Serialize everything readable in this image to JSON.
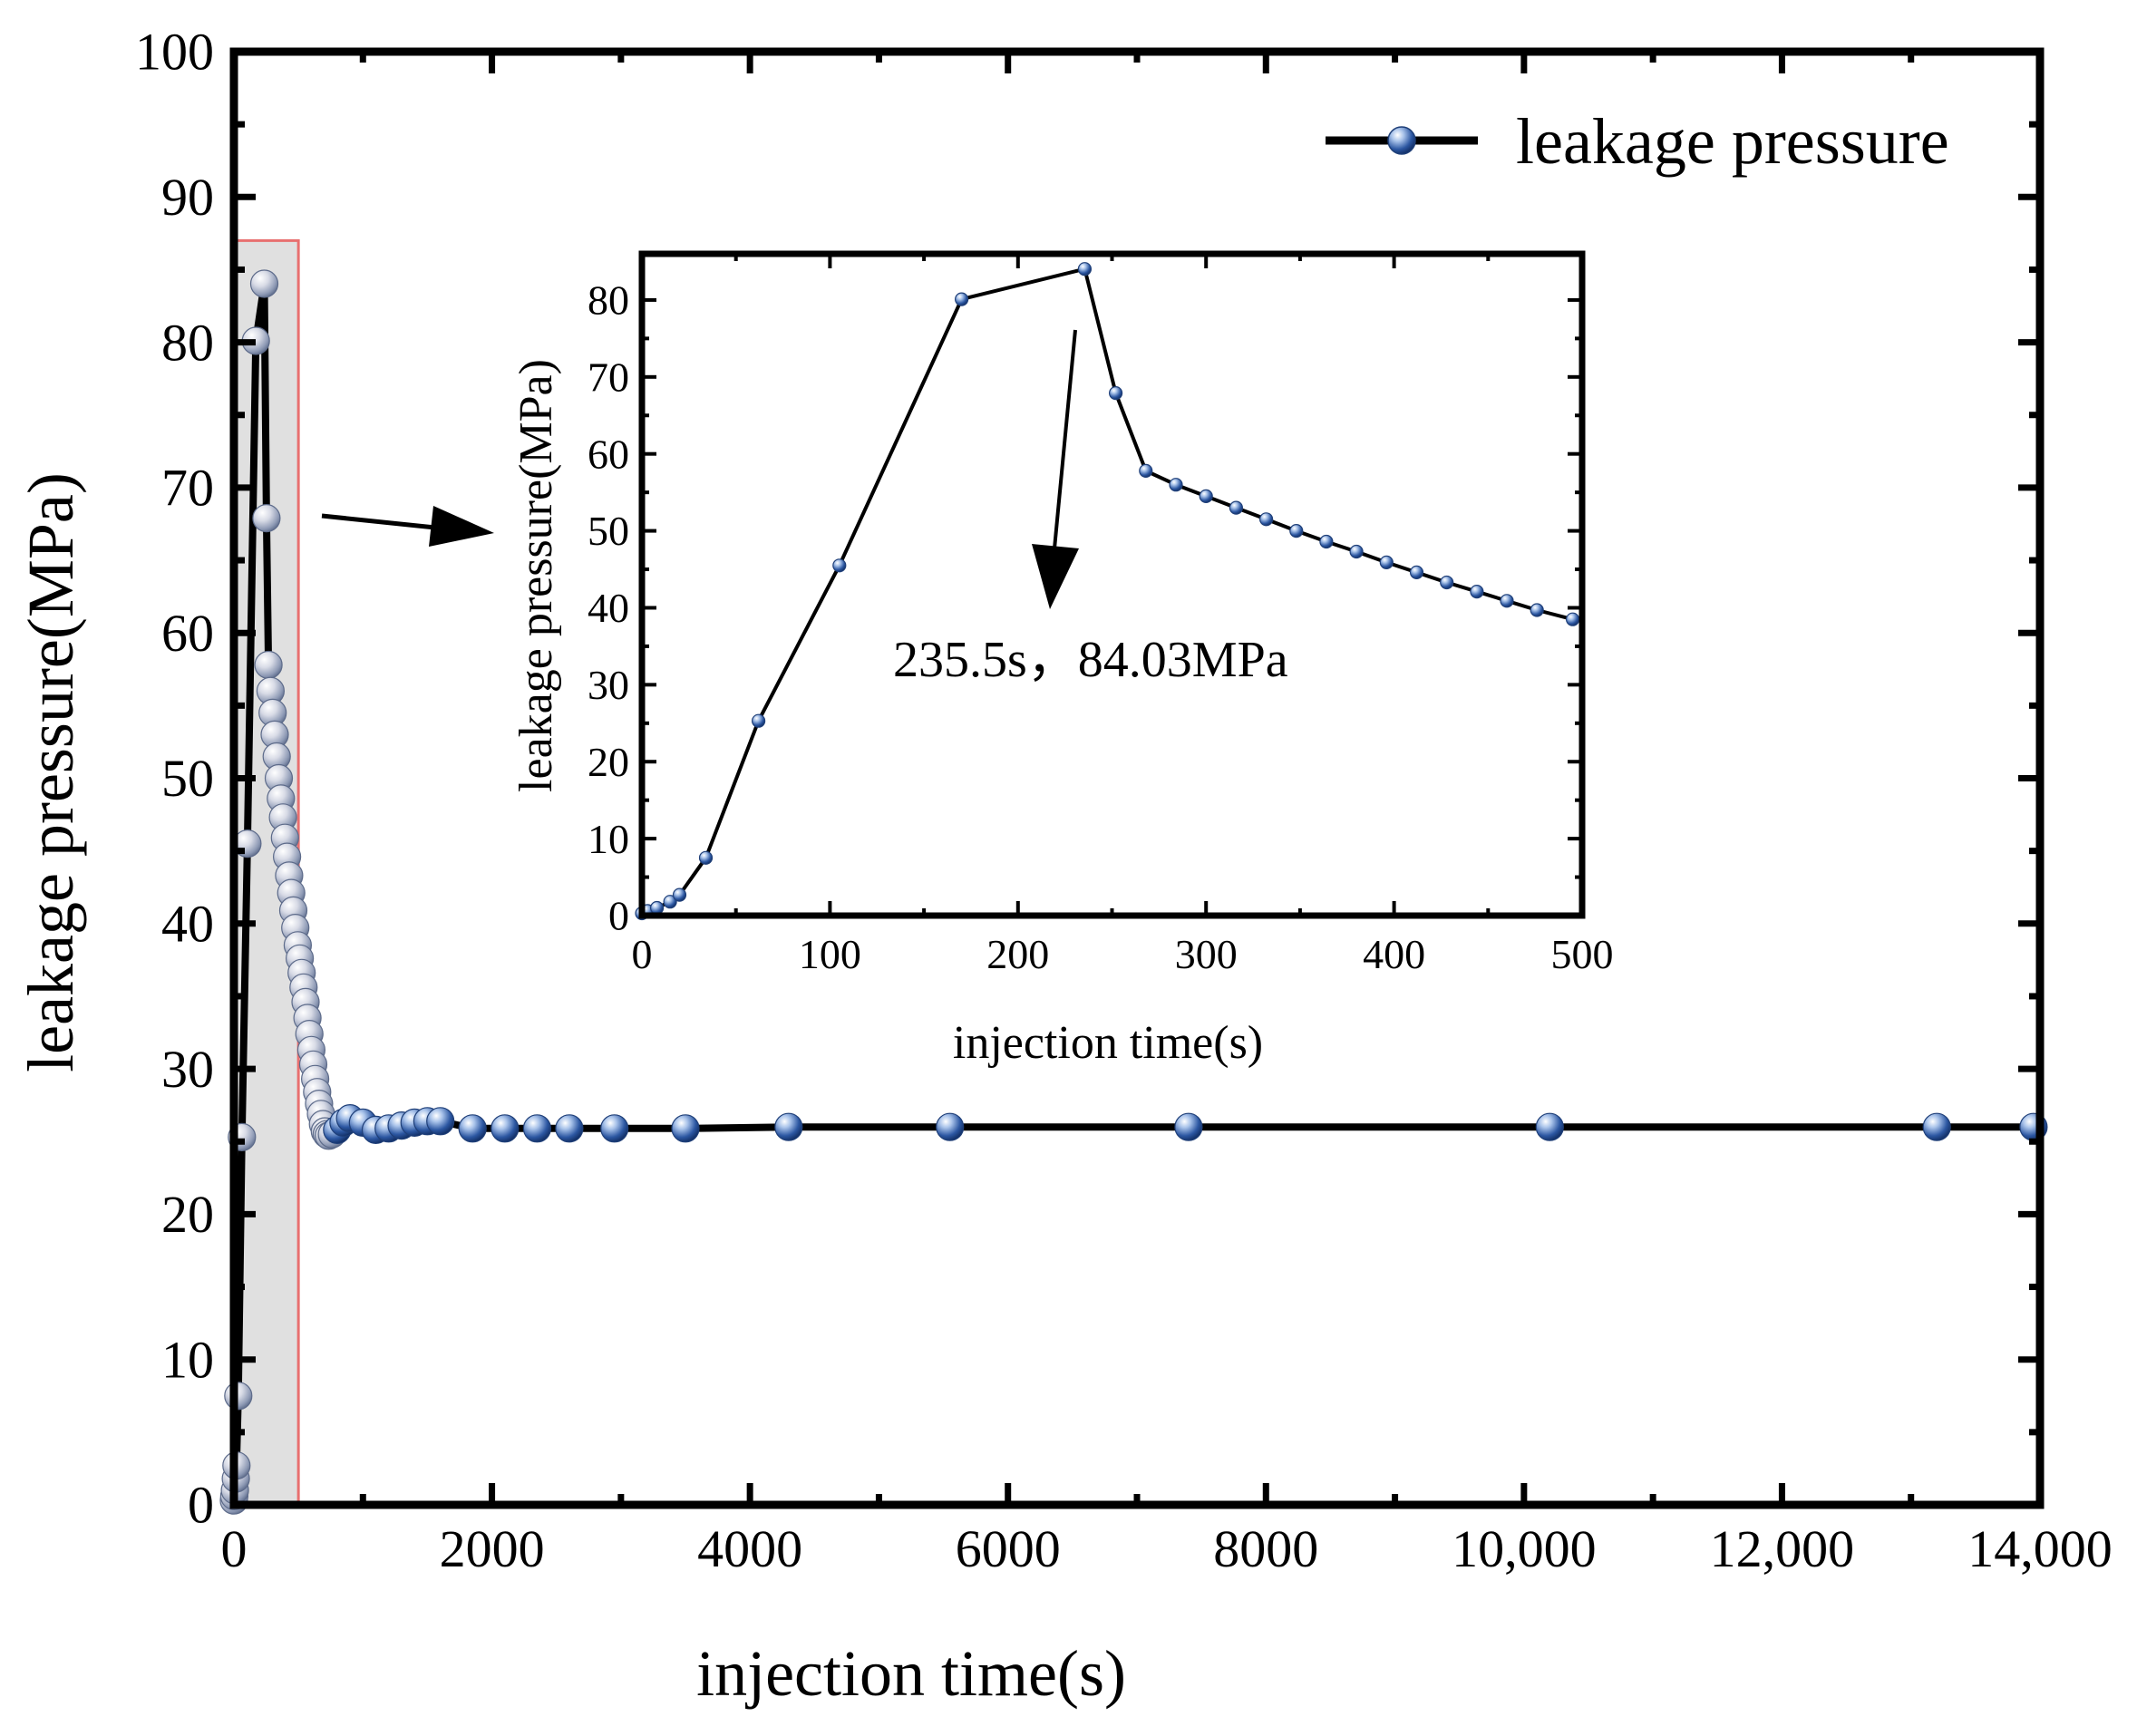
{
  "chart_data": [
    {
      "id": "main",
      "type": "line",
      "xlabel": "injection time(s)",
      "ylabel": "leakage pressure(MPa)",
      "xlim": [
        0,
        14000
      ],
      "ylim": [
        0,
        100
      ],
      "xticks": [
        0,
        2000,
        4000,
        6000,
        8000,
        10000,
        12000,
        14000
      ],
      "xtick_labels": [
        "0",
        "2000",
        "4000",
        "6000",
        "8000",
        "10,000",
        "12,000",
        "14,000"
      ],
      "yticks": [
        0,
        10,
        20,
        30,
        40,
        50,
        60,
        70,
        80,
        90,
        100
      ],
      "ytick_labels": [
        "0",
        "10",
        "20",
        "30",
        "40",
        "50",
        "60",
        "70",
        "80",
        "90",
        "100"
      ],
      "grid": false,
      "legend_position": "top-right",
      "highlight_region": {
        "x": [
          0,
          500
        ],
        "y": [
          0,
          87
        ]
      },
      "series": [
        {
          "name": "leakage pressure",
          "line_color": "#000000",
          "marker_color": "#1f4e99",
          "x": [
            0,
            3,
            8,
            15,
            20,
            34,
            62,
            105,
            170,
            235.5,
            252,
            268,
            284,
            300,
            316,
            332,
            348,
            364,
            380,
            396,
            412,
            428,
            444,
            460,
            476,
            495,
            510,
            525,
            540,
            555,
            570,
            585,
            600,
            615,
            630,
            645,
            660,
            675,
            690,
            705,
            720,
            735,
            760,
            800,
            850,
            900,
            1000,
            1100,
            1200,
            1300,
            1400,
            1500,
            1600,
            1850,
            2100,
            2350,
            2600,
            2950,
            3500,
            4300,
            5550,
            7400,
            10200,
            13200,
            13950
          ],
          "y": [
            0.3,
            0.6,
            1.0,
            1.8,
            2.7,
            7.5,
            25.3,
            45.5,
            80.1,
            84.03,
            67.9,
            57.8,
            56.0,
            54.5,
            53.0,
            51.5,
            50.0,
            48.6,
            47.3,
            45.9,
            44.6,
            43.3,
            42.1,
            40.9,
            39.7,
            38.5,
            37.6,
            36.6,
            35.6,
            34.6,
            33.5,
            32.4,
            31.3,
            30.3,
            29.3,
            28.4,
            27.6,
            26.9,
            26.2,
            25.7,
            25.5,
            25.4,
            25.5,
            25.8,
            26.3,
            26.6,
            26.3,
            25.8,
            25.9,
            26.1,
            26.3,
            26.4,
            26.4,
            25.9,
            25.9,
            25.9,
            25.9,
            25.9,
            25.9,
            26.0,
            26.0,
            26.0,
            26.0,
            26.0,
            26.0
          ]
        }
      ]
    },
    {
      "id": "inset",
      "type": "line",
      "xlabel": "injection time(s)",
      "ylabel": "leakage pressure(MPa)",
      "xlim": [
        0,
        500
      ],
      "ylim": [
        0,
        86
      ],
      "xticks": [
        0,
        100,
        200,
        300,
        400,
        500
      ],
      "xtick_labels": [
        "0",
        "100",
        "200",
        "300",
        "400",
        "500"
      ],
      "yticks": [
        0,
        10,
        20,
        30,
        40,
        50,
        60,
        70,
        80
      ],
      "ytick_labels": [
        "0",
        "10",
        "20",
        "30",
        "40",
        "50",
        "60",
        "70",
        "80"
      ],
      "grid": false,
      "annotation": {
        "text": "235.5s，84.03MPa",
        "x": 235.5,
        "y": 84.03
      },
      "series": [
        {
          "name": "leakage pressure",
          "line_color": "#000000",
          "marker_color": "#1f4e99",
          "x": [
            0,
            3,
            8,
            15,
            20,
            34,
            62,
            105,
            170,
            235.5,
            252,
            268,
            284,
            300,
            316,
            332,
            348,
            364,
            380,
            396,
            412,
            428,
            444,
            460,
            476,
            495
          ],
          "y": [
            0.3,
            0.6,
            1.0,
            1.8,
            2.7,
            7.5,
            25.3,
            45.5,
            80.1,
            84.03,
            67.9,
            57.8,
            56.0,
            54.5,
            53.0,
            51.5,
            50.0,
            48.6,
            47.3,
            45.9,
            44.6,
            43.3,
            42.1,
            40.9,
            39.7,
            38.5
          ]
        }
      ]
    }
  ]
}
